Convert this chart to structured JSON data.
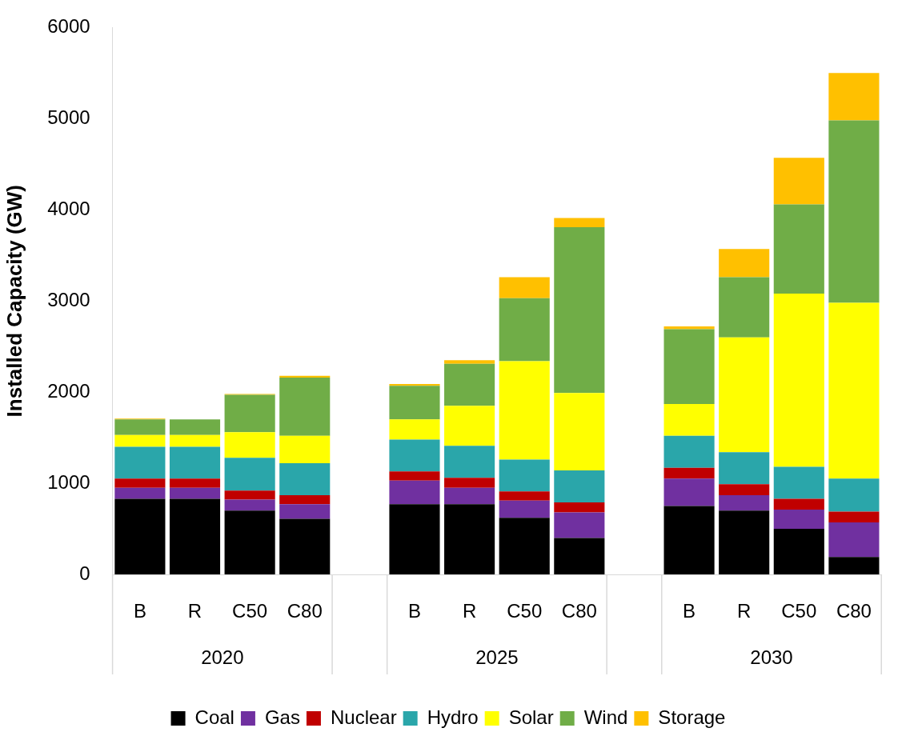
{
  "chart_data": {
    "type": "bar",
    "stacked": true,
    "ylabel": "Installed Capacity (GW)",
    "categories": [
      "B",
      "R",
      "C50",
      "C80",
      null,
      "B",
      "R",
      "C50",
      "C80",
      null,
      "B",
      "R",
      "C50",
      "C80"
    ],
    "annotations": [
      "2020",
      "2025",
      "2030"
    ],
    "ylim": [
      0,
      6000
    ],
    "yticks": [
      0,
      1000,
      2000,
      3000,
      4000,
      5000,
      6000
    ],
    "grid": false,
    "legend": "bottom",
    "series": [
      {
        "name": "Coal",
        "color": "#000000",
        "values": [
          830,
          830,
          700,
          610,
          null,
          770,
          770,
          620,
          400,
          null,
          750,
          700,
          500,
          190
        ]
      },
      {
        "name": "Gas",
        "color": "#7030a0",
        "values": [
          120,
          120,
          120,
          160,
          null,
          260,
          180,
          190,
          280,
          null,
          300,
          170,
          210,
          380
        ]
      },
      {
        "name": "Nuclear",
        "color": "#c00000",
        "values": [
          100,
          100,
          100,
          100,
          null,
          100,
          110,
          100,
          110,
          null,
          120,
          120,
          120,
          120
        ]
      },
      {
        "name": "Hydro",
        "color": "#2aa6aa",
        "values": [
          350,
          350,
          360,
          350,
          null,
          350,
          350,
          350,
          350,
          null,
          350,
          350,
          350,
          360
        ]
      },
      {
        "name": "Solar",
        "color": "#ffff00",
        "values": [
          130,
          130,
          280,
          300,
          null,
          220,
          440,
          1080,
          850,
          null,
          350,
          1260,
          1900,
          1930
        ]
      },
      {
        "name": "Wind",
        "color": "#70ad47",
        "values": [
          170,
          170,
          410,
          640,
          null,
          370,
          460,
          690,
          1820,
          null,
          820,
          660,
          980,
          2000
        ]
      },
      {
        "name": "Storage",
        "color": "#ffc000",
        "values": [
          10,
          0,
          10,
          20,
          null,
          20,
          40,
          230,
          100,
          null,
          30,
          310,
          510,
          520
        ]
      }
    ]
  }
}
